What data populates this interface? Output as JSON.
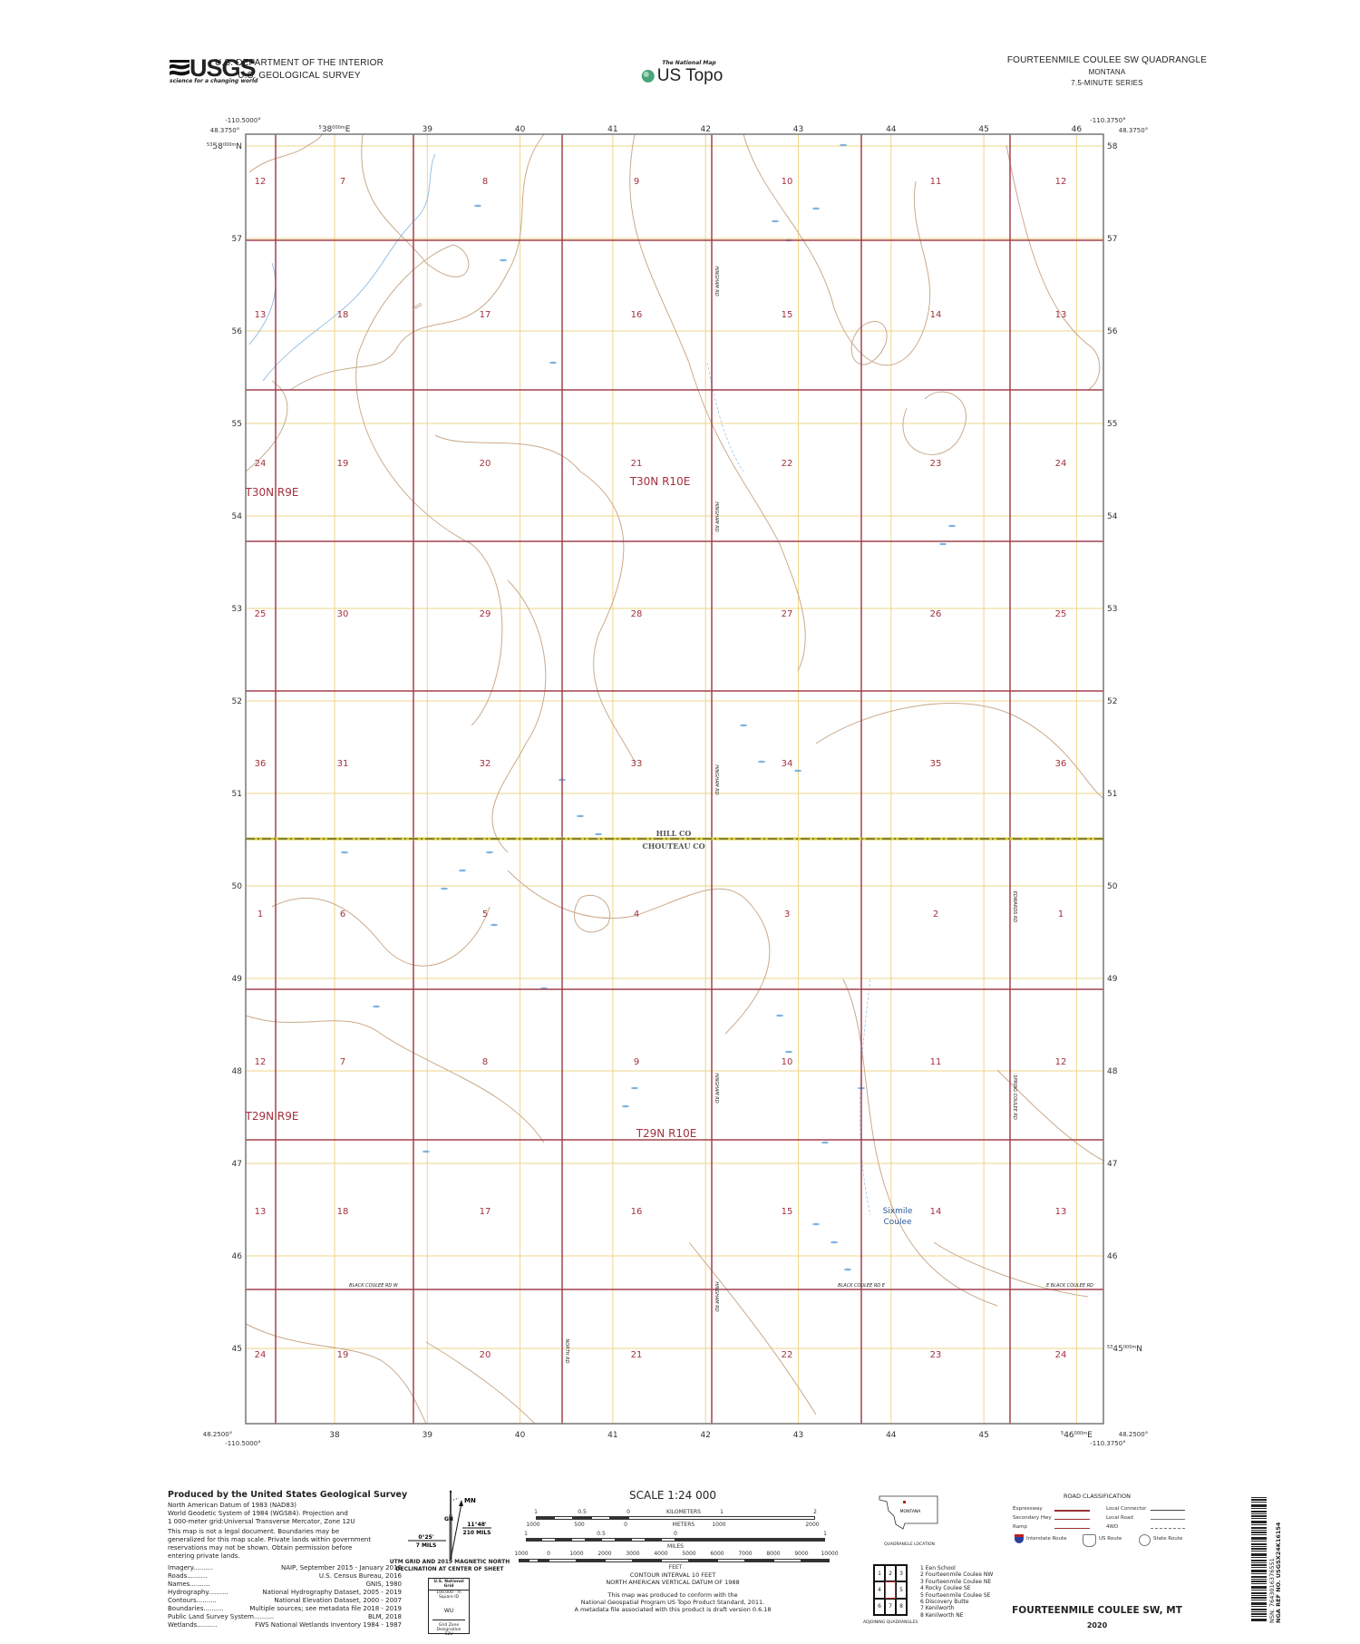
{
  "header": {
    "logo_text": "USGS",
    "logo_tagline": "science for a changing world",
    "dept_line1": "U.S. DEPARTMENT OF THE INTERIOR",
    "dept_line2": "U.S. GEOLOGICAL SURVEY",
    "national_map_text": "The National Map",
    "us_topo_text": "US Topo",
    "quad_title": "FOURTEENMILE COULEE SW QUADRANGLE",
    "state": "MONTANA",
    "series": "7.5-MINUTE SERIES"
  },
  "frame": {
    "top_left_lon": "-110.5000°",
    "top_left_lat": "48.3750°",
    "top_right_lon": "-110.3750°",
    "top_right_lat": "48.3750°",
    "bottom_left_lat": "48.2500°",
    "bottom_left_lon": "-110.5000°",
    "bottom_right_lon": "-110.3750°",
    "bottom_right_lat": "48.2500°",
    "top_first_easting": {
      "prefix": "5",
      "main": "38",
      "sup": "000m",
      "suffix": "E"
    },
    "left_first_northing": {
      "prefix": "53",
      "main": "58",
      "sup": "000m",
      "suffix": "N"
    },
    "bottom_last_easting": {
      "prefix": "5",
      "main": "46",
      "sup": "000m",
      "suffix": "E"
    },
    "right_last_northing": {
      "prefix": "53",
      "main": "45",
      "sup": "000m",
      "suffix": "N"
    },
    "eastings": [
      "38",
      "39",
      "40",
      "41",
      "42",
      "43",
      "44",
      "45",
      "46"
    ],
    "northings": [
      "58",
      "57",
      "56",
      "55",
      "54",
      "53",
      "52",
      "51",
      "50",
      "49",
      "48",
      "47",
      "46",
      "45"
    ]
  },
  "map": {
    "colors": {
      "section_line": "#a3404f",
      "section_label": "#a3303c",
      "utm_grid": "#eed68a",
      "contour": "#c9aa8c",
      "water": "#7fb3e0",
      "county_line": "#d8cc3a"
    },
    "sections": [
      [
        "12",
        "7",
        "8",
        "9",
        "10",
        "11",
        "12"
      ],
      [
        "13",
        "18",
        "17",
        "16",
        "15",
        "14",
        "13"
      ],
      [
        "24",
        "19",
        "20",
        "21",
        "22",
        "23",
        "24"
      ],
      [
        "25",
        "30",
        "29",
        "28",
        "27",
        "26",
        "25"
      ],
      [
        "36",
        "31",
        "32",
        "33",
        "34",
        "35",
        "36"
      ],
      [
        "1",
        "6",
        "5",
        "4",
        "3",
        "2",
        "1"
      ],
      [
        "12",
        "7",
        "8",
        "9",
        "10",
        "11",
        "12"
      ],
      [
        "13",
        "18",
        "17",
        "16",
        "15",
        "14",
        "13"
      ],
      [
        "24",
        "19",
        "20",
        "21",
        "22",
        "23",
        "24"
      ]
    ],
    "townships": [
      "T30N R9E",
      "T30N R10E",
      "T29N R9E",
      "T29N R10E"
    ],
    "counties": {
      "north": "HILL CO",
      "south": "CHOUTEAU CO"
    },
    "place_names": [
      "Sixmile",
      "Coulee"
    ],
    "roads": {
      "black_coulee_w": "BLACK COULEE RD W",
      "black_coulee_e": "BLACK COULEE RD E",
      "e_black_coulee": "E BLACK COULEE RD",
      "hingham": "HINGHAM RD",
      "north": "NORTH RD",
      "edwards": "EDWARDS RD",
      "spring_coulee": "SPRING COULEE RD"
    },
    "contour_label": "2900"
  },
  "footer": {
    "produced_title": "Produced by the United States Geological Survey",
    "datum_lines": [
      "North American Datum of 1983 (NAD83)",
      "World Geodetic System of 1984 (WGS84).  Projection and",
      "1 000-meter grid:Universal Transverse Mercator, Zone 12U"
    ],
    "legal_lines": [
      "This map is not a legal document. Boundaries may be",
      "generalized for this map scale. Private lands within government",
      "reservations may not be shown. Obtain permission before",
      "entering private lands."
    ],
    "sources": [
      {
        "name": "Imagery",
        "source": "NAIP, September 2015 - January 2016"
      },
      {
        "name": "Roads",
        "source": "U.S. Census Bureau, 2016"
      },
      {
        "name": "Names",
        "source": "GNIS, 1980"
      },
      {
        "name": "Hydrography",
        "source": "National Hydrography Dataset, 2005 - 2019"
      },
      {
        "name": "Contours",
        "source": "National Elevation Dataset, 2000 - 2007"
      },
      {
        "name": "Boundaries",
        "source": "Multiple sources; see metadata file 2018 - 2019"
      },
      {
        "name": "Public Land Survey System",
        "source": "BLM, 2018"
      },
      {
        "name": "Wetlands",
        "source": "FWS National Wetlands Inventory 1984 - 1987"
      }
    ],
    "declination": {
      "mn": "MN",
      "gn": "GN",
      "mn_angle": "11°48'",
      "mn_mils": "210 MILS",
      "gn_angle": "0°25'",
      "gn_mils": "7 MILS",
      "caption1": "UTM GRID AND 2019 MAGNETIC NORTH",
      "caption2": "DECLINATION AT CENTER OF SHEET"
    },
    "usng": {
      "title": "U.S. National Grid",
      "square_label": "100,000 - m Square ID",
      "square_id": "WU",
      "zone_label": "Grid Zone Designation",
      "zone": "12U"
    },
    "scale": {
      "title": "SCALE 1:24 000",
      "km_ticks": [
        "1",
        "0.5",
        "0",
        "1",
        "2"
      ],
      "km_label": "KILOMETERS",
      "m_ticks": [
        "1000",
        "500",
        "0",
        "1000",
        "2000"
      ],
      "m_label": "METERS",
      "mi_ticks": [
        "1",
        "0.5",
        "0",
        "1"
      ],
      "mi_label": "MILES",
      "ft_ticks": [
        "1000",
        "0",
        "1000",
        "2000",
        "3000",
        "4000",
        "5000",
        "6000",
        "7000",
        "8000",
        "9000",
        "10000"
      ],
      "ft_label": "FEET"
    },
    "contour_interval": "CONTOUR INTERVAL 10 FEET",
    "vertical_datum": "NORTH AMERICAN VERTICAL DATUM OF 1988",
    "conform_lines": [
      "This map was produced to conform with the",
      "National Geospatial Program US Topo Product Standard, 2011.",
      "A metadata file associated with this product is draft version 0.6.18"
    ],
    "location": {
      "state": "MONTANA",
      "caption": "QUADRANGLE LOCATION"
    },
    "adjoining": {
      "caption": "ADJOINING QUADRANGLES",
      "cells": [
        "1",
        "2",
        "3",
        "4",
        "",
        "5",
        "6",
        "7",
        "8"
      ],
      "names": [
        "1 Een School",
        "2 Fourteenmile Coulee NW",
        "3 Fourteenmile Coulee NE",
        "4 Rocky Coulee SE",
        "5 Fourteenmile Coulee SE",
        "6 Discovery Butte",
        "7 Kenilworth",
        "8 Kenilworth NE"
      ]
    },
    "road_classification": {
      "title": "ROAD CLASSIFICATION",
      "left": [
        "Expressway",
        "Secondary Hwy",
        "Ramp"
      ],
      "right": [
        "Local Connector",
        "Local Road",
        "4WD"
      ],
      "routes": [
        "Interstate Route",
        "US Route",
        "State Route"
      ]
    },
    "bottom_title": "FOURTEENMILE COULEE SW,  MT",
    "year": "2020",
    "barcode_text1": "NSN.  7643016376551",
    "barcode_text2": "NGA REF NO. USGSX24K16154"
  }
}
